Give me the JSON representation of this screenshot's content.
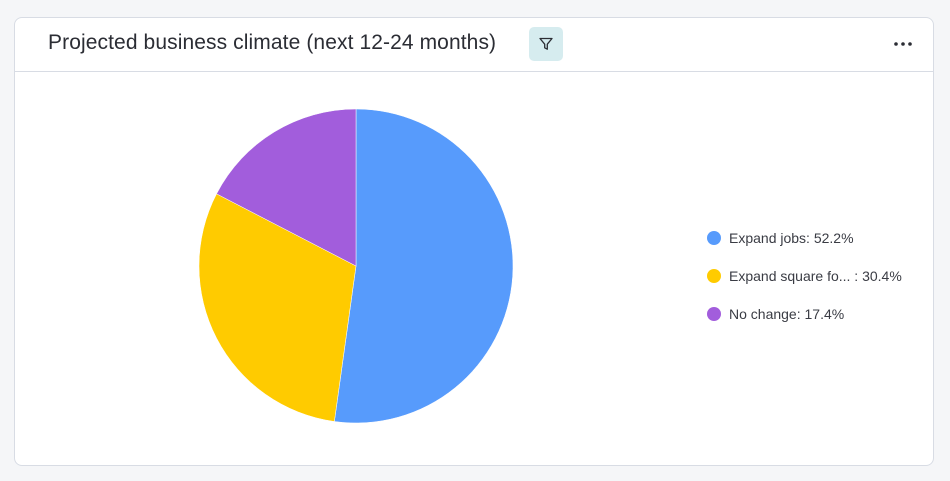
{
  "card": {
    "title": "Projected business climate (next 12-24 months)",
    "filter_icon": "filter-icon",
    "more_icon": "more-horizontal-icon"
  },
  "chart_data": {
    "type": "pie",
    "title": "Projected business climate (next 12-24 months)",
    "slices": [
      {
        "label": "Expand jobs",
        "display_label": "Expand jobs: 52.2%",
        "value": 52.2,
        "color": "#579bfc"
      },
      {
        "label": "Expand square fo...",
        "display_label": "Expand square fo...  : 30.4%",
        "value": 30.4,
        "color": "#ffcb00"
      },
      {
        "label": "No change",
        "display_label": "No change: 17.4%",
        "value": 17.4,
        "color": "#a25ddc"
      }
    ],
    "legend_position": "right"
  }
}
